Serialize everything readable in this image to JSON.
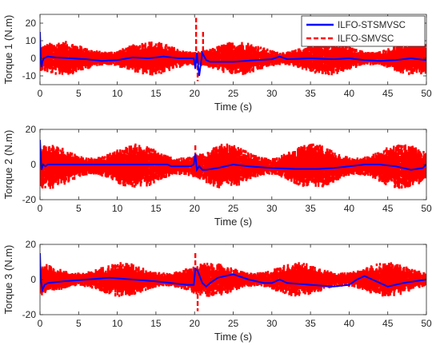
{
  "chart_data": [
    {
      "type": "line",
      "xlabel": "Time (s)",
      "ylabel": "Torque 1 (N.m)",
      "xlim": [
        0,
        50
      ],
      "ylim": [
        -15,
        25
      ],
      "xticks": [
        "0",
        "5",
        "10",
        "15",
        "20",
        "25",
        "30",
        "35",
        "40",
        "45",
        "50"
      ],
      "yticks": [
        "-10",
        "0",
        "10",
        "20"
      ],
      "grid": false,
      "legend": "top-right",
      "series": [
        {
          "name": "ILFO-STSMVSC",
          "color": "#0000ff",
          "style": "solid",
          "x": [
            0,
            0.1,
            0.2,
            0.3,
            0.5,
            1,
            2,
            4,
            6,
            8,
            10,
            12,
            14,
            16,
            18,
            19.9,
            20.1,
            20.3,
            20.6,
            21,
            21.5,
            22,
            25,
            28,
            30,
            31,
            32,
            35,
            38,
            40,
            42,
            44,
            46,
            48,
            50
          ],
          "y": [
            15,
            0,
            -5,
            -2,
            0,
            1,
            0.5,
            0,
            -0.5,
            -1.5,
            -1,
            0.5,
            0,
            1,
            0,
            0,
            -6,
            3,
            -10,
            3,
            -1,
            -2,
            -2,
            -1,
            -0.5,
            1,
            -0.5,
            0,
            -0.5,
            0,
            -1,
            -1.5,
            -1,
            0,
            -1
          ]
        },
        {
          "name": "ILFO-SMVSC",
          "color": "#ff0000",
          "style": "dashed",
          "amplitude": [
            7,
            3
          ],
          "center": [
            0,
            0
          ],
          "spikes": [
            {
              "x": 20.2,
              "y": 23
            },
            {
              "x": 20.4,
              "y": -13
            },
            {
              "x": 21.1,
              "y": 16
            }
          ]
        }
      ]
    },
    {
      "type": "line",
      "xlabel": "Time (s)",
      "ylabel": "Torque 2 (N.m)",
      "xlim": [
        0,
        50
      ],
      "ylim": [
        -20,
        20
      ],
      "xticks": [
        "0",
        "5",
        "10",
        "15",
        "20",
        "25",
        "30",
        "35",
        "40",
        "45",
        "50"
      ],
      "yticks": [
        "-20",
        "0",
        "20"
      ],
      "grid": false,
      "series": [
        {
          "name": "ILFO-STSMVSC",
          "color": "#0000ff",
          "style": "solid",
          "x": [
            0,
            0.1,
            0.2,
            0.4,
            0.7,
            1,
            3,
            8,
            12,
            16.5,
            17,
            18,
            19.5,
            19.9,
            20.1,
            20.3,
            20.6,
            21,
            21.5,
            23,
            25,
            27,
            30,
            33,
            36,
            38,
            40,
            42,
            44,
            46,
            48,
            49.5,
            50
          ],
          "y": [
            14,
            5,
            -3,
            0,
            -1,
            0,
            0,
            0,
            0,
            0,
            -1,
            -1,
            -1,
            0,
            6,
            -3,
            -1,
            -3,
            -3,
            -2,
            0,
            -1,
            -2,
            -2.5,
            -2.5,
            -2,
            -1,
            0,
            0,
            -1,
            -3,
            -2,
            0
          ]
        },
        {
          "name": "ILFO-SMVSC",
          "color": "#ff0000",
          "style": "dashed",
          "amplitude": [
            9,
            4
          ],
          "center": [
            -1,
            0
          ],
          "spikes": [
            {
              "x": 20.1,
              "y": 12
            },
            {
              "x": 20.5,
              "y": -4
            }
          ]
        }
      ]
    },
    {
      "type": "line",
      "xlabel": "Time (s)",
      "ylabel": "Torque 3 (N.m)",
      "xlim": [
        0,
        50
      ],
      "ylim": [
        -20,
        20
      ],
      "xticks": [
        "0",
        "5",
        "10",
        "15",
        "20",
        "25",
        "30",
        "35",
        "40",
        "45",
        "50"
      ],
      "yticks": [
        "-20",
        "0",
        "20"
      ],
      "grid": false,
      "series": [
        {
          "name": "ILFO-STSMVSC",
          "color": "#0000ff",
          "style": "solid",
          "x": [
            0,
            0.1,
            0.3,
            0.6,
            1,
            3,
            6,
            9,
            12,
            15,
            17,
            19,
            19.9,
            20.1,
            20.4,
            21,
            21.5,
            22,
            23,
            25,
            27,
            29,
            30,
            31,
            32,
            35,
            38,
            40,
            41,
            42,
            43,
            45,
            47,
            50
          ],
          "y": [
            15,
            0,
            -6,
            -3,
            -2,
            -1,
            0,
            1,
            0,
            -1,
            -2,
            -3,
            -3,
            6,
            5,
            -2,
            -4,
            -2,
            1,
            3,
            0,
            -2,
            -2,
            0,
            -2,
            -3,
            -4,
            -3,
            0,
            2,
            0,
            -4,
            -2,
            0
          ]
        },
        {
          "name": "ILFO-SMVSC",
          "color": "#ff0000",
          "style": "dashed",
          "amplitude": [
            7,
            3
          ],
          "center": [
            0,
            0
          ],
          "spikes": [
            {
              "x": 20.1,
              "y": 16
            },
            {
              "x": 20.4,
              "y": -18
            }
          ]
        }
      ]
    }
  ]
}
